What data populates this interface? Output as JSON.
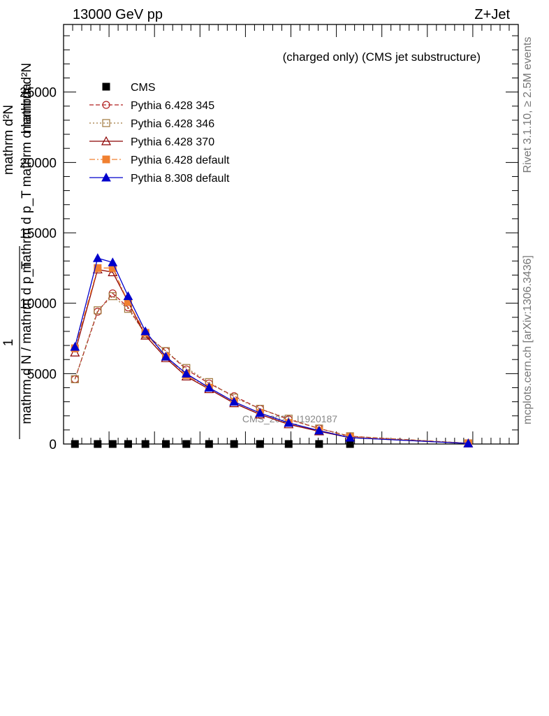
{
  "header": {
    "left": "13000 GeV pp",
    "right": "Z+Jet"
  },
  "side_labels": {
    "rivet": "Rivet 3.1.10, ≥ 2.5M events",
    "mcplots": "mcplots.cern.ch [arXiv:1306.3436]"
  },
  "chart_data": {
    "type": "line",
    "title": "(charged only) (CMS jet substructure)",
    "watermark": "CMS_2021_I1920187",
    "ylabel_lines": [
      "mathrm d²N",
      "mathrm d p_T mathrm d lambda"
    ],
    "ylabel_num": "1",
    "ylabel_den": "mathrm d N / mathrm d p_T",
    "yticks": [
      0,
      5000,
      10000,
      15000,
      20000,
      25000
    ],
    "ytick_labels": [
      "0",
      "5000",
      "10000",
      "15000",
      "20000",
      "25000"
    ],
    "ylim": [
      0,
      29800
    ],
    "xlim": [
      0,
      1
    ],
    "grid": false,
    "legend_position": "top-left",
    "x": [
      0.025,
      0.075,
      0.108,
      0.142,
      0.18,
      0.225,
      0.27,
      0.32,
      0.375,
      0.432,
      0.495,
      0.562,
      0.63,
      0.89
    ],
    "series": [
      {
        "name": "CMS",
        "color": "#000000",
        "marker": "square",
        "line": "none",
        "points": [
          [
            0.025,
            0
          ],
          [
            0.075,
            0
          ],
          [
            0.108,
            0
          ],
          [
            0.142,
            0
          ],
          [
            0.18,
            0
          ],
          [
            0.225,
            0
          ],
          [
            0.27,
            0
          ],
          [
            0.32,
            0
          ],
          [
            0.375,
            0
          ],
          [
            0.432,
            0
          ],
          [
            0.495,
            0
          ],
          [
            0.562,
            0
          ],
          [
            0.63,
            0
          ]
        ]
      },
      {
        "name": "Pythia 6.428 345",
        "color": "#b22222",
        "marker": "open-circle",
        "line": "dashed",
        "points": [
          [
            0.025,
            4600
          ],
          [
            0.075,
            9400
          ],
          [
            0.108,
            10700
          ],
          [
            0.142,
            9700
          ],
          [
            0.18,
            7800
          ],
          [
            0.225,
            6600
          ],
          [
            0.27,
            5300
          ],
          [
            0.32,
            4300
          ],
          [
            0.375,
            3400
          ],
          [
            0.432,
            2500
          ],
          [
            0.495,
            1750
          ],
          [
            0.562,
            1100
          ],
          [
            0.63,
            550
          ],
          [
            0.89,
            50
          ]
        ]
      },
      {
        "name": "Pythia 6.428 346",
        "color": "#a0783c",
        "marker": "open-square",
        "line": "dotted",
        "points": [
          [
            0.025,
            4600
          ],
          [
            0.075,
            9500
          ],
          [
            0.108,
            10500
          ],
          [
            0.142,
            9600
          ],
          [
            0.18,
            7800
          ],
          [
            0.225,
            6600
          ],
          [
            0.27,
            5400
          ],
          [
            0.32,
            4400
          ],
          [
            0.375,
            3300
          ],
          [
            0.432,
            2500
          ],
          [
            0.495,
            1800
          ],
          [
            0.562,
            1100
          ],
          [
            0.63,
            550
          ],
          [
            0.89,
            50
          ]
        ]
      },
      {
        "name": "Pythia 6.428 370",
        "color": "#8b0000",
        "marker": "open-triangle",
        "line": "solid",
        "points": [
          [
            0.025,
            6500
          ],
          [
            0.075,
            12400
          ],
          [
            0.108,
            12200
          ],
          [
            0.142,
            10100
          ],
          [
            0.18,
            7700
          ],
          [
            0.225,
            6100
          ],
          [
            0.27,
            4800
          ],
          [
            0.32,
            3900
          ],
          [
            0.375,
            2900
          ],
          [
            0.432,
            2100
          ],
          [
            0.495,
            1400
          ],
          [
            0.562,
            900
          ],
          [
            0.63,
            450
          ],
          [
            0.89,
            40
          ]
        ]
      },
      {
        "name": "Pythia 6.428 default",
        "color": "#f08030",
        "marker": "filled-square",
        "line": "dashdot",
        "points": [
          [
            0.025,
            6800
          ],
          [
            0.075,
            12500
          ],
          [
            0.108,
            12500
          ],
          [
            0.142,
            10100
          ],
          [
            0.18,
            7900
          ],
          [
            0.225,
            6200
          ],
          [
            0.27,
            4900
          ],
          [
            0.32,
            4000
          ],
          [
            0.375,
            3000
          ],
          [
            0.432,
            2200
          ],
          [
            0.495,
            1500
          ],
          [
            0.562,
            950
          ],
          [
            0.63,
            500
          ],
          [
            0.89,
            45
          ]
        ]
      },
      {
        "name": "Pythia 8.308 default",
        "color": "#0000cc",
        "marker": "filled-triangle",
        "line": "solid",
        "points": [
          [
            0.025,
            6900
          ],
          [
            0.075,
            13200
          ],
          [
            0.108,
            12900
          ],
          [
            0.142,
            10500
          ],
          [
            0.18,
            8000
          ],
          [
            0.225,
            6200
          ],
          [
            0.27,
            5000
          ],
          [
            0.32,
            4000
          ],
          [
            0.375,
            3000
          ],
          [
            0.432,
            2200
          ],
          [
            0.495,
            1500
          ],
          [
            0.562,
            950
          ],
          [
            0.63,
            450
          ],
          [
            0.89,
            40
          ]
        ]
      }
    ]
  }
}
